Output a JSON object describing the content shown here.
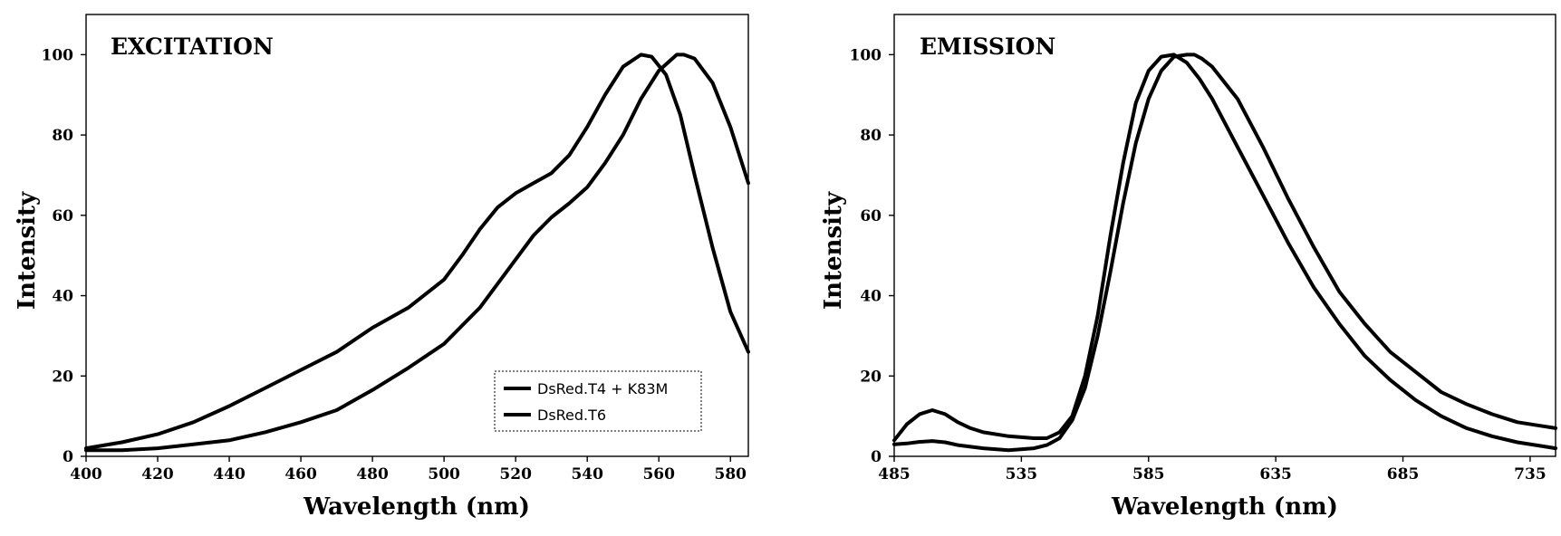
{
  "chart_data": [
    {
      "type": "line",
      "title": "EXCITATION",
      "xlabel": "Wavelength (nm)",
      "ylabel": "Intensity",
      "xlim": [
        400,
        585
      ],
      "ylim": [
        0,
        110
      ],
      "xticks": [
        400,
        420,
        440,
        460,
        480,
        500,
        520,
        540,
        560,
        580
      ],
      "yticks": [
        0,
        20,
        40,
        60,
        80,
        100
      ],
      "grid": false,
      "legend": "bottom-right",
      "series": [
        {
          "name": "DsRed.T4 + K83M",
          "x": [
            400,
            410,
            420,
            430,
            440,
            450,
            460,
            470,
            480,
            490,
            500,
            505,
            510,
            515,
            520,
            525,
            530,
            535,
            540,
            545,
            550,
            555,
            558,
            562,
            566,
            570,
            575,
            580,
            585
          ],
          "y": [
            2,
            3.5,
            5.5,
            8.5,
            12.5,
            17,
            21.5,
            26,
            32,
            37,
            44,
            50,
            56.5,
            62,
            65.5,
            68,
            70.5,
            75,
            82,
            90,
            97,
            100,
            99.5,
            95,
            85,
            70,
            52,
            36,
            26
          ]
        },
        {
          "name": "DsRed.T6",
          "x": [
            400,
            410,
            420,
            430,
            440,
            450,
            460,
            470,
            480,
            490,
            500,
            510,
            520,
            525,
            530,
            535,
            540,
            545,
            550,
            555,
            560,
            565,
            567,
            570,
            575,
            580,
            585
          ],
          "y": [
            1.5,
            1.5,
            2,
            3,
            4,
            6,
            8.5,
            11.5,
            16.5,
            22,
            28,
            37,
            49,
            55,
            59.5,
            63,
            67,
            73,
            80,
            89,
            96,
            100,
            100,
            99,
            93,
            82,
            68
          ]
        }
      ]
    },
    {
      "type": "line",
      "title": "EMISSION",
      "xlabel": "Wavelength (nm)",
      "ylabel": "Intensity",
      "xlim": [
        485,
        745
      ],
      "ylim": [
        0,
        110
      ],
      "xticks": [
        485,
        535,
        585,
        635,
        685,
        735
      ],
      "yticks": [
        0,
        20,
        40,
        60,
        80,
        100
      ],
      "grid": false,
      "series": [
        {
          "name": "DsRed.T4 + K83M",
          "x": [
            485,
            490,
            495,
            500,
            505,
            510,
            515,
            520,
            530,
            540,
            545,
            550,
            555,
            560,
            565,
            570,
            575,
            580,
            585,
            590,
            595,
            600,
            605,
            610,
            620,
            630,
            640,
            650,
            660,
            670,
            680,
            690,
            700,
            710,
            720,
            730,
            740,
            745
          ],
          "y": [
            4,
            8,
            10.5,
            11.5,
            10.5,
            8.5,
            7,
            6,
            5,
            4.5,
            4.5,
            6,
            10,
            20,
            35,
            55,
            73,
            88,
            96,
            99.5,
            100,
            98,
            94,
            89,
            77,
            65,
            53,
            42,
            33,
            25,
            19,
            14,
            10,
            7,
            5,
            3.5,
            2.5,
            2
          ]
        },
        {
          "name": "DsRed.T6",
          "x": [
            485,
            490,
            495,
            500,
            505,
            510,
            520,
            530,
            540,
            545,
            550,
            555,
            560,
            565,
            570,
            575,
            580,
            585,
            590,
            595,
            600,
            603,
            606,
            610,
            620,
            630,
            640,
            650,
            660,
            670,
            680,
            690,
            700,
            710,
            720,
            730,
            740,
            745
          ],
          "y": [
            3,
            3.2,
            3.6,
            3.8,
            3.5,
            2.8,
            2,
            1.5,
            2,
            2.8,
            4.5,
            9,
            17,
            30,
            46,
            63,
            78,
            89,
            96,
            99.5,
            100,
            100,
            99,
            97,
            89,
            77,
            64,
            52,
            41,
            33,
            26,
            21,
            16,
            13,
            10.5,
            8.5,
            7.5,
            7
          ]
        }
      ]
    }
  ]
}
